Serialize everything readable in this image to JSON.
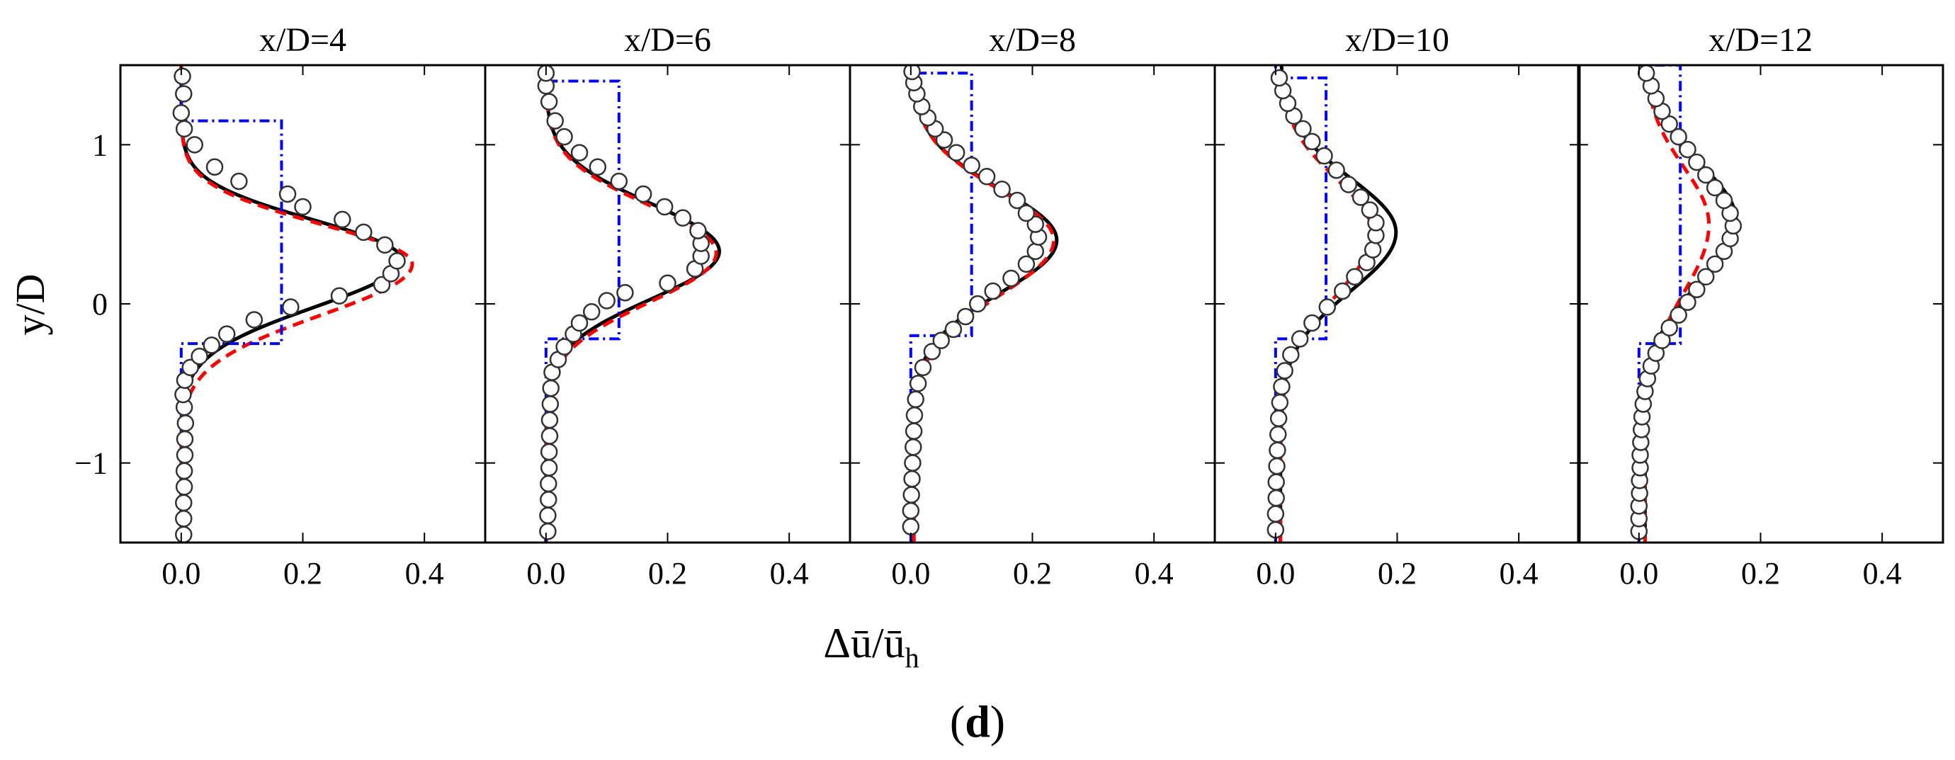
{
  "figure": {
    "panel_label_prefix": "(",
    "panel_label_letter": "d",
    "panel_label_suffix": ")",
    "xlabel_delta": "Δ",
    "xlabel_u": "ū",
    "xlabel_slash": "/",
    "xlabel_sub": "h",
    "ylabel": "y/D"
  },
  "colors": {
    "solid_line": "#000000",
    "dashed_line": "#ff0000",
    "dashdot_line": "#0000ff",
    "markers_fill": "#ffffff",
    "markers_edge": "#333333"
  },
  "chart_data": {
    "type": "line",
    "xlim": [
      -0.1,
      0.5
    ],
    "ylim": [
      -1.5,
      1.5
    ],
    "xticks": [
      0.0,
      0.2,
      0.4
    ],
    "xtick_labels": [
      "0.0",
      "0.2",
      "0.4"
    ],
    "yticks": [
      -1,
      0,
      1
    ],
    "ytick_labels": [
      "−1",
      "0",
      "1"
    ],
    "grid": false,
    "panels": [
      {
        "title": "x/D=4",
        "solid": {
          "base": 0.0,
          "amp": 0.362,
          "center": 0.28,
          "sigma_lower": 0.3,
          "sigma_upper": 0.245
        },
        "dashed": {
          "base": 0.0,
          "amp": 0.38,
          "center": 0.25,
          "sigma_lower": 0.32,
          "sigma_upper": 0.25
        },
        "dashdot": {
          "value": 0.165,
          "y_low": -0.25,
          "y_high": 1.15,
          "base": 0.0
        },
        "measured": [
          {
            "x": 0.004,
            "y": -1.45
          },
          {
            "x": 0.004,
            "y": -1.35
          },
          {
            "x": 0.004,
            "y": -1.25
          },
          {
            "x": 0.005,
            "y": -1.15
          },
          {
            "x": 0.005,
            "y": -1.05
          },
          {
            "x": 0.006,
            "y": -0.95
          },
          {
            "x": 0.006,
            "y": -0.85
          },
          {
            "x": 0.007,
            "y": -0.75
          },
          {
            "x": 0.005,
            "y": -0.65
          },
          {
            "x": 0.003,
            "y": -0.57
          },
          {
            "x": 0.006,
            "y": -0.48
          },
          {
            "x": 0.015,
            "y": -0.4
          },
          {
            "x": 0.03,
            "y": -0.33
          },
          {
            "x": 0.05,
            "y": -0.26
          },
          {
            "x": 0.075,
            "y": -0.19
          },
          {
            "x": 0.12,
            "y": -0.1
          },
          {
            "x": 0.18,
            "y": -0.02
          },
          {
            "x": 0.26,
            "y": 0.05
          },
          {
            "x": 0.33,
            "y": 0.12
          },
          {
            "x": 0.345,
            "y": 0.19
          },
          {
            "x": 0.355,
            "y": 0.27
          },
          {
            "x": 0.335,
            "y": 0.37
          },
          {
            "x": 0.3,
            "y": 0.45
          },
          {
            "x": 0.265,
            "y": 0.53
          },
          {
            "x": 0.2,
            "y": 0.61
          },
          {
            "x": 0.175,
            "y": 0.69
          },
          {
            "x": 0.095,
            "y": 0.77
          },
          {
            "x": 0.055,
            "y": 0.86
          },
          {
            "x": 0.022,
            "y": 1.0
          },
          {
            "x": 0.005,
            "y": 1.1
          },
          {
            "x": 0.0,
            "y": 1.2
          },
          {
            "x": 0.004,
            "y": 1.32
          },
          {
            "x": 0.002,
            "y": 1.43
          }
        ]
      },
      {
        "title": "x/D=6",
        "solid": {
          "base": 0.0,
          "amp": 0.285,
          "center": 0.33,
          "sigma_lower": 0.3,
          "sigma_upper": 0.3
        },
        "dashed": {
          "base": 0.0,
          "amp": 0.28,
          "center": 0.32,
          "sigma_lower": 0.31,
          "sigma_upper": 0.3
        },
        "dashdot": {
          "value": 0.12,
          "y_low": -0.22,
          "y_high": 1.4,
          "base": 0.0
        },
        "measured": [
          {
            "x": 0.003,
            "y": -1.43
          },
          {
            "x": 0.003,
            "y": -1.33
          },
          {
            "x": 0.004,
            "y": -1.23
          },
          {
            "x": 0.004,
            "y": -1.13
          },
          {
            "x": 0.005,
            "y": -1.03
          },
          {
            "x": 0.005,
            "y": -0.93
          },
          {
            "x": 0.006,
            "y": -0.83
          },
          {
            "x": 0.006,
            "y": -0.73
          },
          {
            "x": 0.007,
            "y": -0.63
          },
          {
            "x": 0.008,
            "y": -0.53
          },
          {
            "x": 0.01,
            "y": -0.43
          },
          {
            "x": 0.02,
            "y": -0.35
          },
          {
            "x": 0.03,
            "y": -0.27
          },
          {
            "x": 0.045,
            "y": -0.19
          },
          {
            "x": 0.055,
            "y": -0.12
          },
          {
            "x": 0.075,
            "y": -0.05
          },
          {
            "x": 0.1,
            "y": 0.02
          },
          {
            "x": 0.13,
            "y": 0.07
          },
          {
            "x": 0.2,
            "y": 0.13
          },
          {
            "x": 0.245,
            "y": 0.22
          },
          {
            "x": 0.255,
            "y": 0.3
          },
          {
            "x": 0.255,
            "y": 0.38
          },
          {
            "x": 0.25,
            "y": 0.46
          },
          {
            "x": 0.225,
            "y": 0.54
          },
          {
            "x": 0.195,
            "y": 0.61
          },
          {
            "x": 0.16,
            "y": 0.69
          },
          {
            "x": 0.12,
            "y": 0.77
          },
          {
            "x": 0.085,
            "y": 0.86
          },
          {
            "x": 0.055,
            "y": 0.95
          },
          {
            "x": 0.03,
            "y": 1.05
          },
          {
            "x": 0.015,
            "y": 1.15
          },
          {
            "x": 0.005,
            "y": 1.27
          },
          {
            "x": 0.0,
            "y": 1.37
          },
          {
            "x": 0.0,
            "y": 1.45
          }
        ]
      },
      {
        "title": "x/D=8",
        "solid": {
          "base": 0.005,
          "amp": 0.235,
          "center": 0.4,
          "sigma_lower": 0.33,
          "sigma_upper": 0.32
        },
        "dashed": {
          "base": 0.005,
          "amp": 0.23,
          "center": 0.4,
          "sigma_lower": 0.35,
          "sigma_upper": 0.32
        },
        "dashdot": {
          "value": 0.1,
          "y_low": -0.2,
          "y_high": 1.45,
          "base": 0.0
        },
        "measured": [
          {
            "x": 0.0,
            "y": -1.4
          },
          {
            "x": 0.0,
            "y": -1.3
          },
          {
            "x": 0.001,
            "y": -1.2
          },
          {
            "x": 0.002,
            "y": -1.1
          },
          {
            "x": 0.003,
            "y": -1.0
          },
          {
            "x": 0.004,
            "y": -0.9
          },
          {
            "x": 0.005,
            "y": -0.8
          },
          {
            "x": 0.006,
            "y": -0.7
          },
          {
            "x": 0.008,
            "y": -0.6
          },
          {
            "x": 0.012,
            "y": -0.5
          },
          {
            "x": 0.02,
            "y": -0.4
          },
          {
            "x": 0.035,
            "y": -0.3
          },
          {
            "x": 0.05,
            "y": -0.23
          },
          {
            "x": 0.07,
            "y": -0.16
          },
          {
            "x": 0.09,
            "y": -0.08
          },
          {
            "x": 0.11,
            "y": 0.0
          },
          {
            "x": 0.135,
            "y": 0.08
          },
          {
            "x": 0.165,
            "y": 0.16
          },
          {
            "x": 0.19,
            "y": 0.25
          },
          {
            "x": 0.205,
            "y": 0.33
          },
          {
            "x": 0.21,
            "y": 0.42
          },
          {
            "x": 0.205,
            "y": 0.5
          },
          {
            "x": 0.19,
            "y": 0.57
          },
          {
            "x": 0.175,
            "y": 0.65
          },
          {
            "x": 0.15,
            "y": 0.72
          },
          {
            "x": 0.125,
            "y": 0.8
          },
          {
            "x": 0.1,
            "y": 0.87
          },
          {
            "x": 0.075,
            "y": 0.95
          },
          {
            "x": 0.055,
            "y": 1.03
          },
          {
            "x": 0.04,
            "y": 1.1
          },
          {
            "x": 0.028,
            "y": 1.17
          },
          {
            "x": 0.018,
            "y": 1.24
          },
          {
            "x": 0.01,
            "y": 1.32
          },
          {
            "x": 0.005,
            "y": 1.39
          },
          {
            "x": 0.002,
            "y": 1.46
          }
        ]
      },
      {
        "title": "x/D=10",
        "solid": {
          "base": 0.008,
          "amp": 0.19,
          "center": 0.45,
          "sigma_lower": 0.37,
          "sigma_upper": 0.34
        },
        "dashed": {
          "base": 0.008,
          "amp": 0.15,
          "center": 0.45,
          "sigma_lower": 0.4,
          "sigma_upper": 0.34
        },
        "dashdot": {
          "value": 0.083,
          "y_low": -0.22,
          "y_high": 1.42,
          "base": 0.0
        },
        "measured": [
          {
            "x": 0.0,
            "y": -1.42
          },
          {
            "x": 0.0,
            "y": -1.32
          },
          {
            "x": 0.001,
            "y": -1.22
          },
          {
            "x": 0.001,
            "y": -1.12
          },
          {
            "x": 0.002,
            "y": -1.02
          },
          {
            "x": 0.003,
            "y": -0.92
          },
          {
            "x": 0.004,
            "y": -0.82
          },
          {
            "x": 0.005,
            "y": -0.72
          },
          {
            "x": 0.007,
            "y": -0.62
          },
          {
            "x": 0.01,
            "y": -0.52
          },
          {
            "x": 0.015,
            "y": -0.42
          },
          {
            "x": 0.025,
            "y": -0.32
          },
          {
            "x": 0.04,
            "y": -0.22
          },
          {
            "x": 0.06,
            "y": -0.12
          },
          {
            "x": 0.085,
            "y": -0.02
          },
          {
            "x": 0.11,
            "y": 0.08
          },
          {
            "x": 0.13,
            "y": 0.17
          },
          {
            "x": 0.15,
            "y": 0.26
          },
          {
            "x": 0.16,
            "y": 0.34
          },
          {
            "x": 0.165,
            "y": 0.43
          },
          {
            "x": 0.165,
            "y": 0.51
          },
          {
            "x": 0.155,
            "y": 0.59
          },
          {
            "x": 0.14,
            "y": 0.67
          },
          {
            "x": 0.12,
            "y": 0.75
          },
          {
            "x": 0.1,
            "y": 0.84
          },
          {
            "x": 0.08,
            "y": 0.93
          },
          {
            "x": 0.06,
            "y": 1.02
          },
          {
            "x": 0.045,
            "y": 1.1
          },
          {
            "x": 0.03,
            "y": 1.18
          },
          {
            "x": 0.02,
            "y": 1.26
          },
          {
            "x": 0.012,
            "y": 1.34
          },
          {
            "x": 0.006,
            "y": 1.42
          }
        ]
      },
      {
        "title": "x/D=12",
        "solid": {
          "base": 0.01,
          "amp": 0.15,
          "center": 0.52,
          "sigma_lower": 0.38,
          "sigma_upper": 0.36
        },
        "dashed": {
          "base": 0.01,
          "amp": 0.105,
          "center": 0.5,
          "sigma_lower": 0.43,
          "sigma_upper": 0.36
        },
        "dashdot": {
          "value": 0.068,
          "y_low": -0.25,
          "y_high": 1.5,
          "base": 0.0
        },
        "measured": [
          {
            "x": 0.0,
            "y": -1.43
          },
          {
            "x": 0.0,
            "y": -1.35
          },
          {
            "x": 0.0,
            "y": -1.27
          },
          {
            "x": 0.001,
            "y": -1.19
          },
          {
            "x": 0.001,
            "y": -1.11
          },
          {
            "x": 0.002,
            "y": -1.03
          },
          {
            "x": 0.002,
            "y": -0.95
          },
          {
            "x": 0.003,
            "y": -0.87
          },
          {
            "x": 0.004,
            "y": -0.79
          },
          {
            "x": 0.005,
            "y": -0.71
          },
          {
            "x": 0.007,
            "y": -0.63
          },
          {
            "x": 0.01,
            "y": -0.55
          },
          {
            "x": 0.014,
            "y": -0.47
          },
          {
            "x": 0.02,
            "y": -0.39
          },
          {
            "x": 0.028,
            "y": -0.31
          },
          {
            "x": 0.038,
            "y": -0.23
          },
          {
            "x": 0.05,
            "y": -0.15
          },
          {
            "x": 0.065,
            "y": -0.07
          },
          {
            "x": 0.08,
            "y": 0.01
          },
          {
            "x": 0.095,
            "y": 0.09
          },
          {
            "x": 0.11,
            "y": 0.17
          },
          {
            "x": 0.125,
            "y": 0.25
          },
          {
            "x": 0.14,
            "y": 0.33
          },
          {
            "x": 0.15,
            "y": 0.41
          },
          {
            "x": 0.155,
            "y": 0.49
          },
          {
            "x": 0.15,
            "y": 0.57
          },
          {
            "x": 0.14,
            "y": 0.65
          },
          {
            "x": 0.125,
            "y": 0.73
          },
          {
            "x": 0.11,
            "y": 0.81
          },
          {
            "x": 0.095,
            "y": 0.89
          },
          {
            "x": 0.08,
            "y": 0.97
          },
          {
            "x": 0.065,
            "y": 1.05
          },
          {
            "x": 0.05,
            "y": 1.13
          },
          {
            "x": 0.038,
            "y": 1.21
          },
          {
            "x": 0.028,
            "y": 1.29
          },
          {
            "x": 0.02,
            "y": 1.37
          },
          {
            "x": 0.012,
            "y": 1.45
          }
        ]
      }
    ]
  }
}
